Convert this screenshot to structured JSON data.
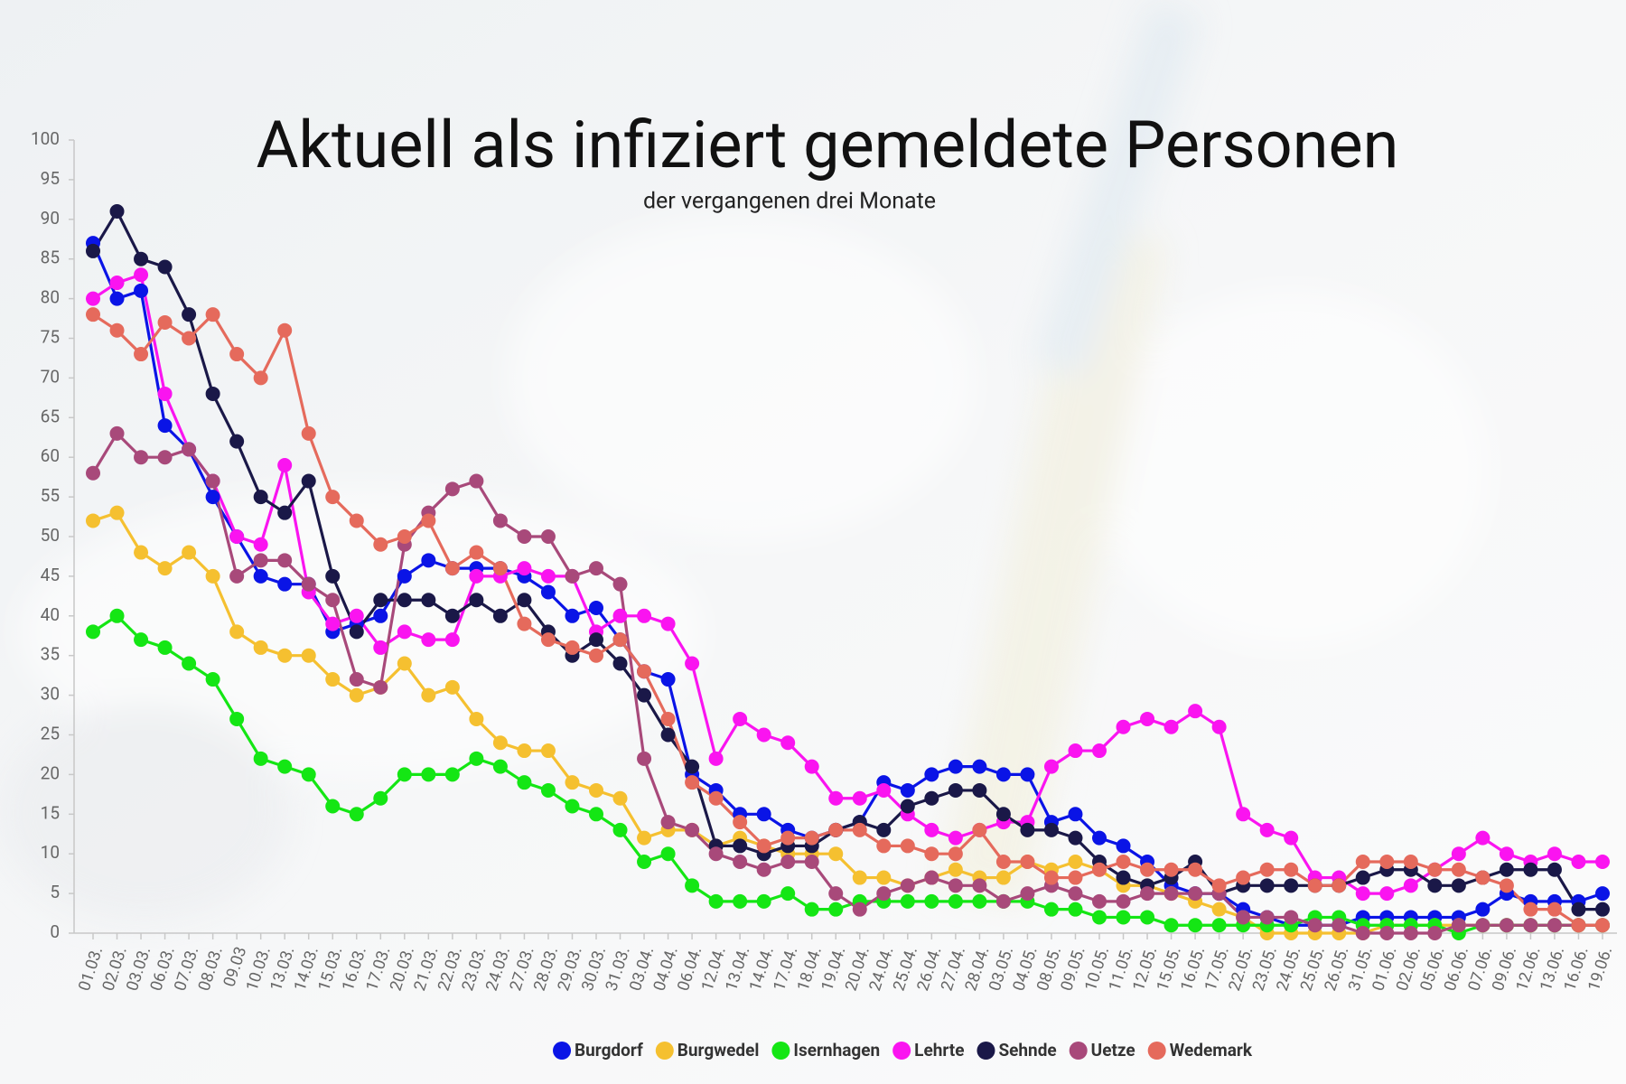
{
  "chart_data": {
    "type": "line",
    "title": "Aktuell als infiziert gemeldete Personen",
    "subtitle": "der vergangenen drei Monate",
    "categories": [
      "01.03.",
      "02.03.",
      "03.03.",
      "06.03.",
      "07.03.",
      "08.03.",
      "09.03",
      "10.03.",
      "13.03.",
      "14.03.",
      "15.03.",
      "16.03.",
      "17.03.",
      "20.03.",
      "21.03.",
      "22.03.",
      "23.03.",
      "24.03.",
      "27.03.",
      "28.03.",
      "29.03.",
      "30.03.",
      "31.03.",
      "03.04.",
      "04.04.",
      "06.04.",
      "12.04.",
      "13.04.",
      "14.04.",
      "17.04.",
      "18.04.",
      "19.04.",
      "20.04.",
      "24.04.",
      "25.04.",
      "26.04.",
      "27.04.",
      "28.04.",
      "03.05.",
      "04.05.",
      "08.05.",
      "09.05.",
      "10.05.",
      "11.05.",
      "12.05.",
      "15.05.",
      "16.05.",
      "17.05.",
      "22.05.",
      "23.05.",
      "24.05.",
      "25.05.",
      "26.05.",
      "31.05.",
      "01.06.",
      "02.06.",
      "05.06.",
      "06.06.",
      "07.06.",
      "09.06.",
      "12.06.",
      "13.06.",
      "16.06.",
      "19.06."
    ],
    "series": [
      {
        "name": "Burgdorf",
        "color": "#0a14e6",
        "values": [
          87,
          80,
          81,
          64,
          61,
          55,
          50,
          45,
          44,
          44,
          38,
          39,
          40,
          45,
          47,
          46,
          46,
          46,
          45,
          43,
          40,
          41,
          37,
          33,
          32,
          20,
          18,
          15,
          15,
          13,
          12,
          13,
          14,
          19,
          18,
          20,
          21,
          21,
          20,
          20,
          14,
          15,
          12,
          11,
          9,
          6,
          5,
          5,
          3,
          2,
          1,
          1,
          1,
          2,
          2,
          2,
          2,
          2,
          3,
          5,
          4,
          4,
          4,
          5
        ]
      },
      {
        "name": "Burgwedel",
        "color": "#f5c030",
        "values": [
          52,
          53,
          48,
          46,
          48,
          45,
          38,
          36,
          35,
          35,
          32,
          30,
          31,
          34,
          30,
          31,
          27,
          24,
          23,
          23,
          19,
          18,
          17,
          12,
          13,
          13,
          11,
          12,
          11,
          10,
          10,
          10,
          7,
          7,
          6,
          7,
          8,
          7,
          7,
          9,
          8,
          9,
          8,
          6,
          6,
          5,
          4,
          3,
          2,
          0,
          0,
          0,
          0,
          0,
          1,
          1,
          1,
          1,
          1,
          1,
          1,
          1,
          1,
          1
        ]
      },
      {
        "name": "Isernhagen",
        "color": "#14e614",
        "values": [
          38,
          40,
          37,
          36,
          34,
          32,
          27,
          22,
          21,
          20,
          16,
          15,
          17,
          20,
          20,
          20,
          22,
          21,
          19,
          18,
          16,
          15,
          13,
          9,
          10,
          6,
          4,
          4,
          4,
          5,
          3,
          3,
          4,
          4,
          4,
          4,
          4,
          4,
          4,
          4,
          3,
          3,
          2,
          2,
          2,
          1,
          1,
          1,
          1,
          1,
          1,
          2,
          2,
          1,
          1,
          1,
          1,
          0,
          1,
          1,
          1,
          1,
          1,
          1
        ]
      },
      {
        "name": "Lehrte",
        "color": "#fa14f0",
        "values": [
          80,
          82,
          83,
          68,
          61,
          57,
          50,
          49,
          59,
          43,
          39,
          40,
          36,
          38,
          37,
          37,
          45,
          45,
          46,
          45,
          45,
          38,
          40,
          40,
          39,
          34,
          22,
          27,
          25,
          24,
          21,
          17,
          17,
          18,
          15,
          13,
          12,
          13,
          14,
          14,
          21,
          23,
          23,
          26,
          27,
          26,
          28,
          26,
          15,
          13,
          12,
          7,
          7,
          5,
          5,
          6,
          8,
          10,
          12,
          10,
          9,
          10,
          9,
          9
        ]
      },
      {
        "name": "Sehnde",
        "color": "#1a1848",
        "values": [
          86,
          91,
          85,
          84,
          78,
          68,
          62,
          55,
          53,
          57,
          45,
          38,
          42,
          42,
          42,
          40,
          42,
          40,
          42,
          38,
          35,
          37,
          34,
          30,
          25,
          21,
          11,
          11,
          10,
          11,
          11,
          13,
          14,
          13,
          16,
          17,
          18,
          18,
          15,
          13,
          13,
          12,
          9,
          7,
          6,
          7,
          9,
          5,
          6,
          6,
          6,
          6,
          6,
          7,
          8,
          8,
          6,
          6,
          7,
          8,
          8,
          8,
          3,
          3
        ]
      },
      {
        "name": "Uetze",
        "color": "#a8497a",
        "values": [
          58,
          63,
          60,
          60,
          61,
          57,
          45,
          47,
          47,
          44,
          42,
          32,
          31,
          49,
          53,
          56,
          57,
          52,
          50,
          50,
          45,
          46,
          44,
          22,
          14,
          13,
          10,
          9,
          8,
          9,
          9,
          5,
          3,
          5,
          6,
          7,
          6,
          6,
          4,
          5,
          6,
          5,
          4,
          4,
          5,
          5,
          5,
          5,
          2,
          2,
          2,
          1,
          1,
          0,
          0,
          0,
          0,
          1,
          1,
          1,
          1,
          1,
          1,
          1
        ]
      },
      {
        "name": "Wedemark",
        "color": "#e56a5c",
        "values": [
          78,
          76,
          73,
          77,
          75,
          78,
          73,
          70,
          76,
          63,
          55,
          52,
          49,
          50,
          52,
          46,
          48,
          46,
          39,
          37,
          36,
          35,
          37,
          33,
          27,
          19,
          17,
          14,
          11,
          12,
          12,
          13,
          13,
          11,
          11,
          10,
          10,
          13,
          9,
          9,
          7,
          7,
          8,
          9,
          8,
          8,
          8,
          6,
          7,
          8,
          8,
          6,
          6,
          9,
          9,
          9,
          8,
          8,
          7,
          6,
          3,
          3,
          1,
          1
        ]
      }
    ],
    "ylim": [
      0,
      100
    ],
    "yticks": [
      0,
      5,
      10,
      15,
      20,
      25,
      30,
      35,
      40,
      45,
      50,
      55,
      60,
      65,
      70,
      75,
      80,
      85,
      90,
      95,
      100
    ]
  }
}
